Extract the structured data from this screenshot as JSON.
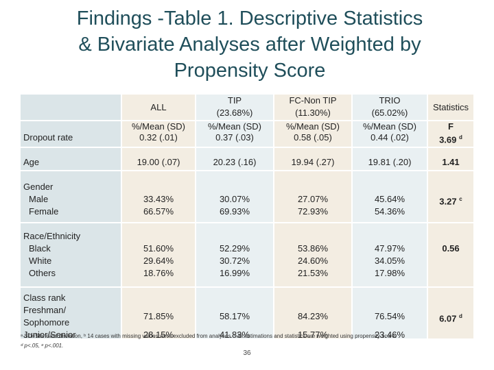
{
  "title": {
    "line1": "Findings -Table 1. Descriptive Statistics",
    "line2": "& Bivariate Analyses after Weighted by",
    "line3": "Propensity Score"
  },
  "header": {
    "all": "ALL",
    "tip": "TIP",
    "tip_pct": "(23.68%)",
    "fc": "FC-Non TIP",
    "fc_pct": "(11.30%)",
    "trio": "TRIO",
    "trio_pct": "(65.02%)",
    "stats": "Statistics",
    "sub_all": "%/Mean (SD)",
    "sub_tip": "%/Mean (SD)",
    "sub_fc": "%/Mean (SD)",
    "sub_trio": "%/Mean (SD)",
    "sub_stats": "F"
  },
  "rows": {
    "dropout": {
      "label": "Dropout rate",
      "all": "0.32 (.01)",
      "tip": "0.37 (.03)",
      "fc": "0.58 (.05)",
      "trio": "0.44 (.02)",
      "stat": "3.69",
      "sup": "d"
    },
    "age": {
      "label": "Age",
      "all": "19.00 (.07)",
      "tip": "20.23 (.16)",
      "fc": "19.94 (.27)",
      "trio": "19.81 (.20)",
      "stat": "1.41"
    },
    "gender": {
      "label": "Gender",
      "male": "Male",
      "female": "Female",
      "all_m": "33.43%",
      "all_f": "66.57%",
      "tip_m": "30.07%",
      "tip_f": "69.93%",
      "fc_m": "27.07%",
      "fc_f": "72.93%",
      "trio_m": "45.64%",
      "trio_f": "54.36%",
      "stat": "3.27",
      "sup": "c"
    },
    "race": {
      "label": "Race/Ethnicity",
      "black": "Black",
      "white": "White",
      "others": "Others",
      "all": [
        "51.60%",
        "29.64%",
        "18.76%"
      ],
      "tip": [
        "52.29%",
        "30.72%",
        "16.99%"
      ],
      "fc": [
        "53.86%",
        "24.60%",
        "21.53%"
      ],
      "trio": [
        "47.97%",
        "34.05%",
        "17.98%"
      ],
      "stat": "0.56"
    },
    "class": {
      "label": "Class rank",
      "fresh": "Freshman/",
      "soph": "Sophomore",
      "junior": "Junior/Senior",
      "all": "71.85%",
      "tip": "58.17%",
      "fc": "84.23%",
      "trio": "76.54%",
      "all2": "28.15%",
      "tip2": "41.83%",
      "fc2": "15.77%",
      "trio2": "23.46%",
      "stat": "6.07",
      "sup": "d"
    }
  },
  "footnote": {
    "line1": "ᵃ SD=Standard deviation, ᵇ 14 cases with missing values were excluded from analyses. ᶜ All estimations and statistics are weighted using propensity score.",
    "line2": "ᵈ p<.05,   ᵉ p<.001."
  },
  "page_number": "36"
}
